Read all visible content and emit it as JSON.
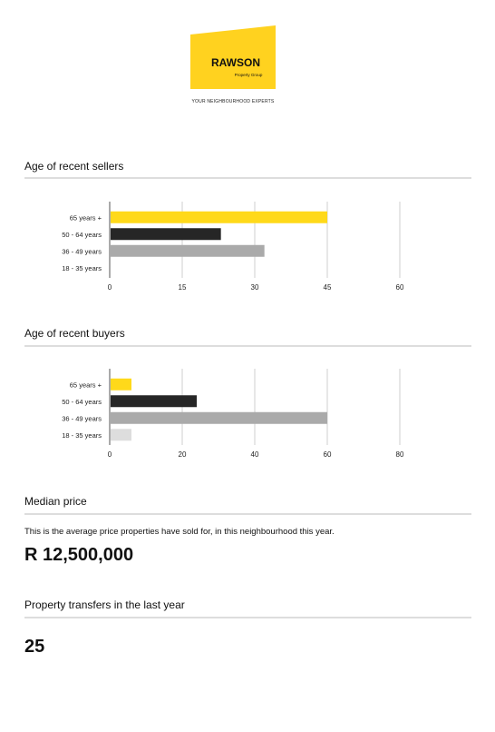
{
  "logo": {
    "brand": "RAWSON",
    "sub": "Property Group",
    "tagline": "YOUR NEIGHBOURHOOD EXPERTS",
    "color": "#FFD21F"
  },
  "sections": {
    "sellers_title": "Age of recent sellers",
    "buyers_title": "Age of recent buyers",
    "median_title": "Median price",
    "median_note": "This is the average price properties have sold for, in this neighbourhood this year.",
    "median_value": "R 12,500,000",
    "transfers_title": "Property transfers in the last year",
    "transfers_value": "25"
  },
  "chart_data": [
    {
      "type": "bar",
      "orientation": "horizontal",
      "categories": [
        "65 years +",
        "50 - 64 years",
        "36 - 49 years",
        "18 - 35 years"
      ],
      "values": [
        45,
        23,
        32,
        0
      ],
      "colors": [
        "#FFD91A",
        "#262626",
        "#AAAAAA",
        "#DDDDDD"
      ],
      "xlim": [
        0,
        60
      ],
      "xticks": [
        0,
        15,
        30,
        45,
        60
      ],
      "grid": true
    },
    {
      "type": "bar",
      "orientation": "horizontal",
      "categories": [
        "65 years +",
        "50 - 64 years",
        "36 - 49 years",
        "18 - 35 years"
      ],
      "values": [
        6,
        24,
        60,
        6
      ],
      "colors": [
        "#FFD91A",
        "#262626",
        "#AAAAAA",
        "#DDDDDD"
      ],
      "xlim": [
        0,
        80
      ],
      "xticks": [
        0,
        20,
        40,
        60,
        80
      ],
      "grid": true
    }
  ]
}
